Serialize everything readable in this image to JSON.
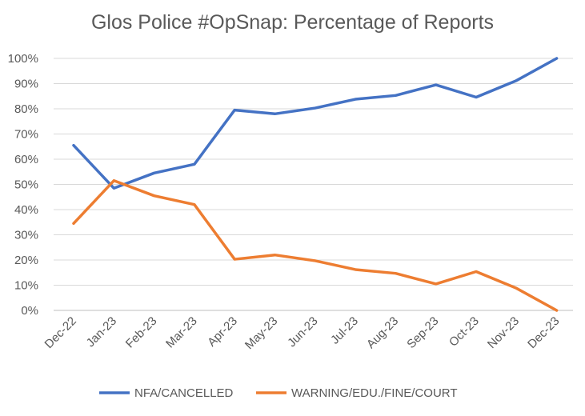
{
  "chart_data": {
    "type": "line",
    "title": "Glos Police #OpSnap: Percentage of Reports",
    "categories": [
      "Dec-22",
      "Jan-23",
      "Feb-23",
      "Mar-23",
      "Apr-23",
      "May-23",
      "Jun-23",
      "Jul-23",
      "Aug-23",
      "Sep-23",
      "Oct-23",
      "Nov-23",
      "Dec-23"
    ],
    "y_ticks": [
      "0%",
      "10%",
      "20%",
      "30%",
      "40%",
      "50%",
      "60%",
      "70%",
      "80%",
      "90%",
      "100%"
    ],
    "ylim": [
      0,
      100
    ],
    "grid": true,
    "legend_position": "bottom",
    "series": [
      {
        "name": "NFA/CANCELLED",
        "color": "#4472C4",
        "values": [
          65.5,
          48.5,
          54.5,
          58,
          79.5,
          78,
          80.3,
          83.8,
          85.3,
          89.5,
          84.6,
          91.2,
          100
        ]
      },
      {
        "name": "WARNING/EDU./FINE/COURT",
        "color": "#ED7D31",
        "values": [
          34.5,
          51.5,
          45.5,
          42,
          20.3,
          22,
          19.7,
          16.2,
          14.7,
          10.5,
          15.4,
          8.8,
          0
        ]
      }
    ]
  }
}
